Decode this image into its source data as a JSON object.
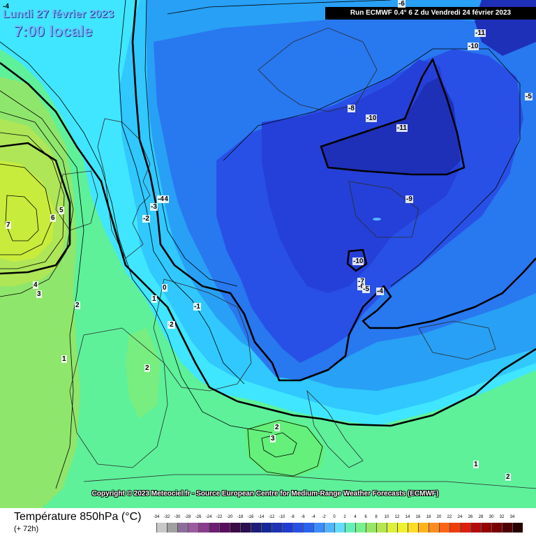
{
  "header": {
    "corner_value": "-4",
    "date": "Lundi 27 février 2023",
    "time": "7:00 locale",
    "run": "Run ECMWF 0.4° 6 Z du Vendredi 24 février 2023"
  },
  "copyright": "Copyright © 2023 Meteociel.fr - Source European Centre for Medium-Range Weather Forecasts (ECMWF)",
  "legend": {
    "title": "Température 850hPa (°C)",
    "subtitle": "(+ 72h)",
    "ticks": [
      "-34",
      "-32",
      "-30",
      "-28",
      "-26",
      "-24",
      "-22",
      "-20",
      "-18",
      "-16",
      "-14",
      "-12",
      "-10",
      "-8",
      "-6",
      "-4",
      "-2",
      "0",
      "2",
      "4",
      "6",
      "8",
      "10",
      "12",
      "14",
      "16",
      "18",
      "20",
      "22",
      "24",
      "26",
      "28",
      "30",
      "32",
      "34"
    ],
    "colors": [
      "#c8c8c8",
      "#a0a0a0",
      "#8c6e9a",
      "#9a5aa0",
      "#8a3c8c",
      "#6e1e72",
      "#5a0f5e",
      "#3c0a46",
      "#2c0f50",
      "#1e1e78",
      "#14289a",
      "#1e32b4",
      "#1e3cd2",
      "#2850e6",
      "#2864f0",
      "#3c8cff",
      "#50b4ff",
      "#64dcff",
      "#64f0b4",
      "#78f08c",
      "#96e664",
      "#b4e650",
      "#dcf03c",
      "#f0f032",
      "#ffdc28",
      "#ffb41e",
      "#ff8c1e",
      "#ff6414",
      "#f03c0a",
      "#dc1e0a",
      "#b40a0a",
      "#960000",
      "#780000",
      "#500000",
      "#280000"
    ]
  },
  "contour_labels": [
    "-4",
    "-8",
    "-10",
    "-11",
    "-10",
    "-11",
    "-5",
    "-9",
    "-10",
    "-7",
    "-6",
    "-5",
    "-4",
    "-4",
    "-3",
    "-2",
    "-1",
    "0",
    "1",
    "-1",
    "2",
    "5",
    "6",
    "7",
    "4",
    "3",
    "2",
    "1",
    "2",
    "2",
    "3",
    "1",
    "2",
    "-6"
  ]
}
